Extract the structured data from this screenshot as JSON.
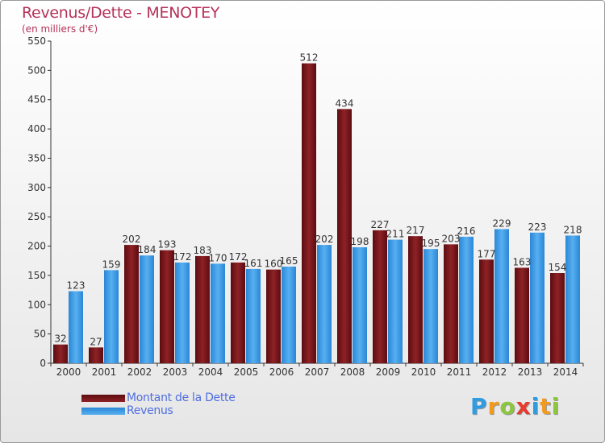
{
  "title": "Revenus/Dette - MENOTEY",
  "subtitle": "(en milliers d'€)",
  "logo": {
    "letters": [
      {
        "char": "P",
        "color": "#2f9be0"
      },
      {
        "char": "r",
        "color": "#f29a1b"
      },
      {
        "char": "o",
        "color": "#8cc63f"
      },
      {
        "char": "x",
        "color": "#e63b2f"
      },
      {
        "char": "i",
        "color": "#2f9be0"
      },
      {
        "char": "t",
        "color": "#f29a1b"
      },
      {
        "char": "i",
        "color": "#8cc63f"
      }
    ]
  },
  "chart_data": {
    "type": "bar",
    "title": "Revenus/Dette - MENOTEY",
    "subtitle": "(en milliers d'€)",
    "categories": [
      "2000",
      "2001",
      "2002",
      "2003",
      "2004",
      "2005",
      "2006",
      "2007",
      "2008",
      "2009",
      "2010",
      "2011",
      "2012",
      "2013",
      "2014"
    ],
    "series": [
      {
        "name": "Montant de la Dette",
        "color": "#7a1518",
        "values": [
          32,
          27,
          202,
          193,
          183,
          172,
          160,
          512,
          434,
          227,
          217,
          203,
          177,
          163,
          154
        ]
      },
      {
        "name": "Revenus",
        "color": "#3d9be6",
        "values": [
          123,
          159,
          184,
          172,
          170,
          161,
          165,
          202,
          198,
          211,
          195,
          216,
          229,
          223,
          218
        ]
      }
    ],
    "ylim": [
      0,
      550
    ],
    "yticks": [
      0,
      50,
      100,
      150,
      200,
      250,
      300,
      350,
      400,
      450,
      500,
      550
    ],
    "grid": false,
    "legend_position": "bottom-left"
  }
}
